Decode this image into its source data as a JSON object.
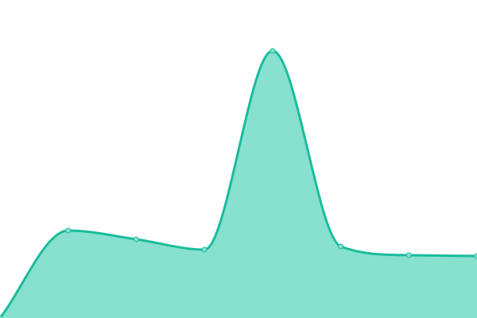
{
  "chart_data": {
    "type": "area",
    "x": [
      0,
      1,
      2,
      3,
      4,
      5,
      6,
      7
    ],
    "values": [
      0,
      110,
      99,
      86,
      336,
      90,
      79,
      78
    ],
    "ylim": [
      0,
      400
    ],
    "xlim": [
      0,
      7
    ],
    "grid": false,
    "smooth": true,
    "colors": {
      "line": "#1abc9c",
      "fill": "#88e0cf",
      "point": "#88e0cf"
    }
  }
}
